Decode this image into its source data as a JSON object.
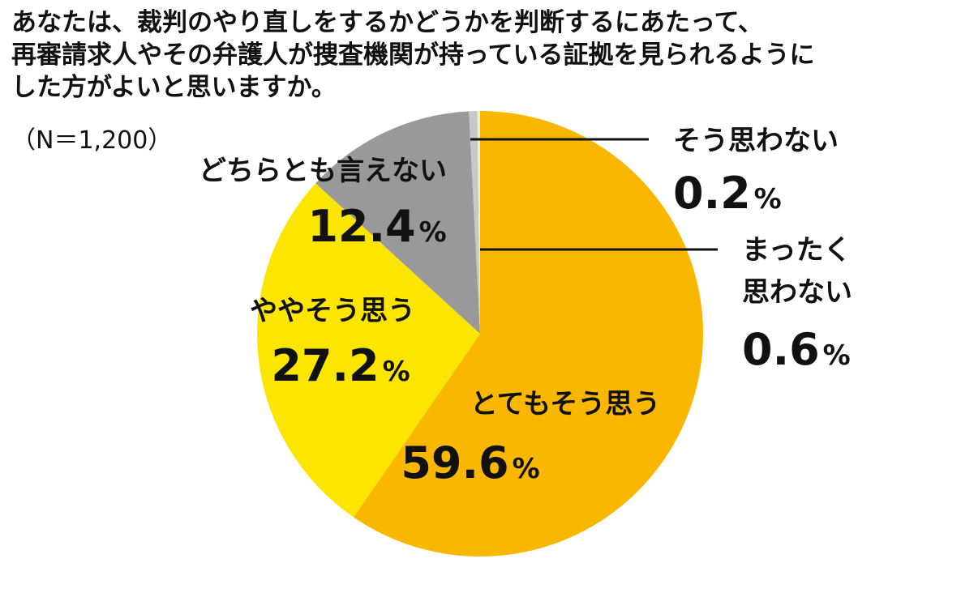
{
  "title_lines": [
    "あなたは、裁判のやり直しをするかどうかを判断するにあたって、",
    "再審請求人やその弁護人が捜査機関が持っている証拠を見られるように",
    "した方がよいと思いますか。"
  ],
  "sample_note": "（N＝1,200）",
  "chart_data": {
    "type": "pie",
    "start": "top",
    "direction": "clockwise",
    "unit": "%",
    "slices": [
      {
        "label_lines": [
          "とてもそう思う"
        ],
        "value": 59.6,
        "value_text": "59.6",
        "color": "#F9B700"
      },
      {
        "label_lines": [
          "ややそう思う"
        ],
        "value": 27.2,
        "value_text": "27.2",
        "color": "#FCE600"
      },
      {
        "label_lines": [
          "どちらとも言えない"
        ],
        "value": 12.4,
        "value_text": "12.4",
        "color": "#999999"
      },
      {
        "label_lines": [
          "まったく",
          "思わない"
        ],
        "value": 0.6,
        "value_text": "0.6",
        "color": "#C8C8C8"
      },
      {
        "label_lines": [
          "そう思わない"
        ],
        "value": 0.2,
        "value_text": "0.2",
        "color": "#EBEBEB"
      }
    ]
  }
}
